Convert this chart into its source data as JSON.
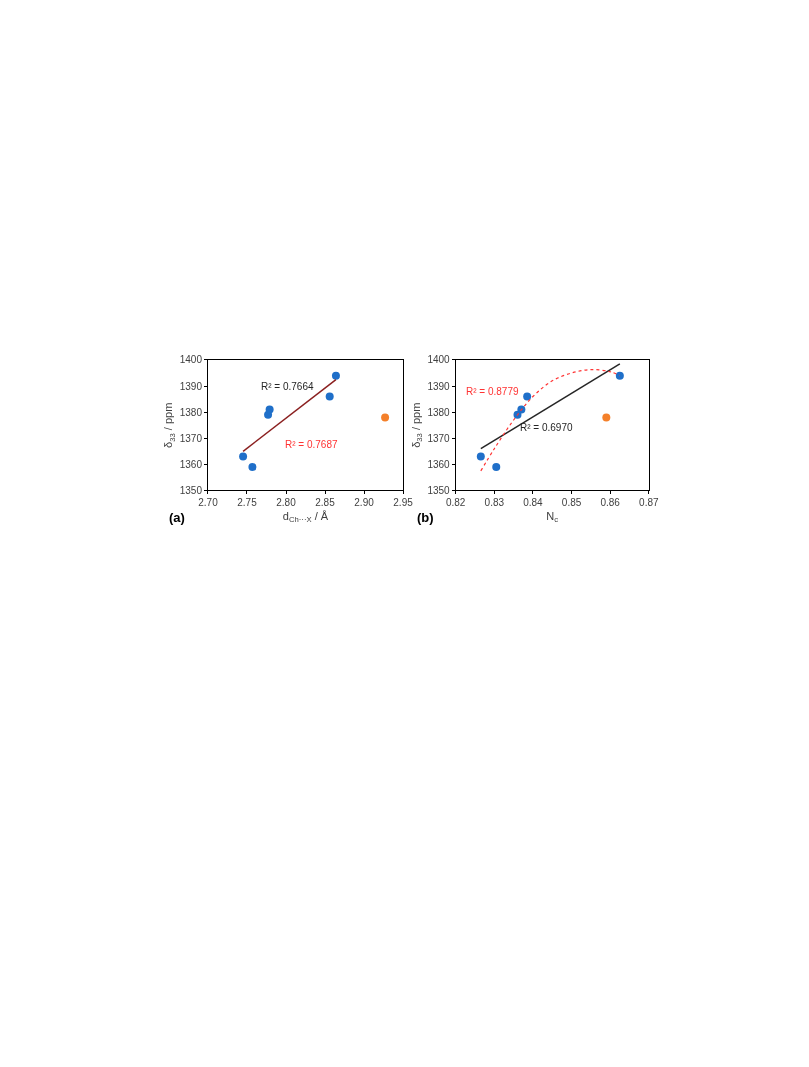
{
  "chart_data": [
    {
      "type": "scatter",
      "xlabel": "d$_{Ch···X}$ / Å",
      "ylabel": "δ$_{33}$ / ppm",
      "annotations": [
        "R² = 0.7664",
        "R² = 0.7687",
        "(a)"
      ],
      "xlim": [
        2.7,
        2.95
      ],
      "xticks": [
        {
          "value": 2.7,
          "label": "2.70"
        },
        {
          "value": 2.75,
          "label": "2.75"
        },
        {
          "value": 2.8,
          "label": "2.80"
        },
        {
          "value": 2.85,
          "label": "2.85"
        },
        {
          "value": 2.9,
          "label": "2.90"
        },
        {
          "value": 2.95,
          "label": "2.95"
        }
      ],
      "ylim": [
        1350,
        1400
      ],
      "yticks": [
        1350,
        1360,
        1370,
        1380,
        1390,
        1400
      ],
      "series": [
        {
          "color": "#1f6fc9",
          "marker": "circle",
          "x": [
            2.745,
            2.757,
            2.777,
            2.779,
            2.856,
            2.864
          ],
          "values": [
            1363,
            1359,
            1379,
            1381,
            1386,
            1394
          ]
        },
        {
          "color": "#f4802a",
          "marker": "circle",
          "x": [
            2.927
          ],
          "values": [
            1378
          ]
        },
        {
          "type": "line",
          "color": "#8b2020",
          "x": [
            2.745,
            2.864
          ],
          "values": [
            1365,
            1392.5
          ],
          "line_style": "solid"
        }
      ]
    },
    {
      "type": "scatter",
      "xlabel": "N$_{c}$",
      "ylabel": "δ$_{33}$ / ppm",
      "annotations": [
        "R² = 0.6970",
        "R² = 0.8779",
        "(b)"
      ],
      "xlim": [
        0.82,
        0.87
      ],
      "xticks": [
        {
          "value": 0.82,
          "label": "0.82"
        },
        {
          "value": 0.83,
          "label": "0.83"
        },
        {
          "value": 0.84,
          "label": "0.84"
        },
        {
          "value": 0.85,
          "label": "0.85"
        },
        {
          "value": 0.86,
          "label": "0.86"
        },
        {
          "value": 0.87,
          "label": "0.87"
        }
      ],
      "ylim": [
        1350,
        1400
      ],
      "yticks": [
        1350,
        1360,
        1370,
        1380,
        1390,
        1400
      ],
      "series": [
        {
          "color": "#1f6fc9",
          "marker": "circle",
          "x": [
            0.8265,
            0.8305,
            0.836,
            0.837,
            0.8385,
            0.8625
          ],
          "values": [
            1363,
            1359,
            1379,
            1381,
            1386,
            1394
          ]
        },
        {
          "color": "#f4802a",
          "marker": "circle",
          "x": [
            0.859
          ],
          "values": [
            1378
          ]
        },
        {
          "type": "line",
          "color": "#262626",
          "x": [
            0.8265,
            0.8625
          ],
          "values": [
            1366,
            1398.5
          ],
          "line_style": "solid"
        },
        {
          "type": "line",
          "color": "#ff3333",
          "x": [
            0.8265,
            0.83,
            0.835,
            0.84,
            0.845,
            0.85,
            0.855,
            0.86,
            0.8625
          ],
          "values": [
            1357.5,
            1366,
            1377,
            1386,
            1392,
            1395,
            1396.3,
            1395.5,
            1394
          ],
          "line_style": "dotted"
        }
      ]
    }
  ]
}
